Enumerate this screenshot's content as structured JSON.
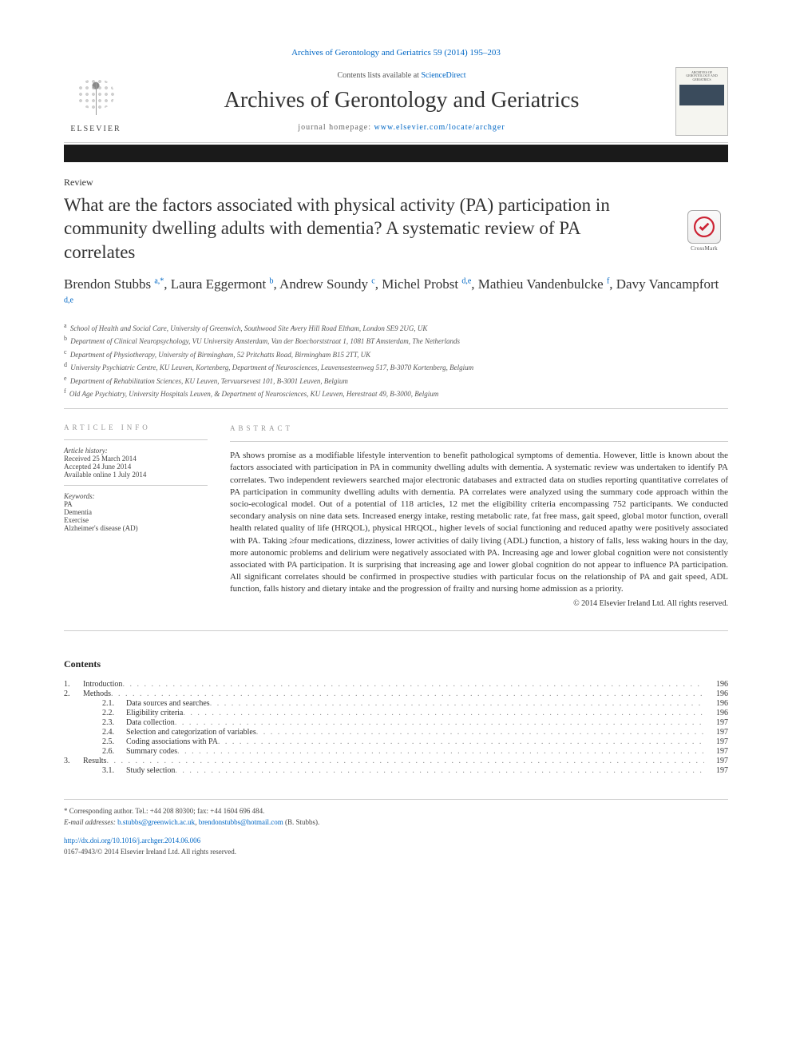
{
  "top_link": {
    "prefix": "Archives of Gerontology and Geriatrics 59 (2014) 195–203"
  },
  "header": {
    "contents_prefix": "Contents lists available at ",
    "contents_link": "ScienceDirect",
    "journal_name": "Archives of Gerontology and Geriatrics",
    "home_prefix": "journal homepage: ",
    "home_link": "www.elsevier.com/locate/archger",
    "elsevier_label": "ELSEVIER",
    "cover_text": "ARCHIVES OF GERONTOLOGY AND GERIATRICS",
    "crossmark_label": "CrossMark"
  },
  "article": {
    "review_label": "Review",
    "title": "What are the factors associated with physical activity (PA) participation in community dwelling adults with dementia? A systematic review of PA correlates",
    "authors_html": "Brendon Stubbs <sup>a,*</sup>, Laura Eggermont <sup>b</sup>, Andrew Soundy <sup>c</sup>, Michel Probst <sup>d,e</sup>, Mathieu Vandenbulcke <sup>f</sup>, Davy Vancampfort <sup>d,e</sup>",
    "affiliations": [
      {
        "sup": "a",
        "text": "School of Health and Social Care, University of Greenwich, Southwood Site Avery Hill Road Eltham, London SE9 2UG, UK"
      },
      {
        "sup": "b",
        "text": "Department of Clinical Neuropsychology, VU University Amsterdam, Van der Boechorststraat 1, 1081 BT Amsterdam, The Netherlands"
      },
      {
        "sup": "c",
        "text": "Department of Physiotherapy, University of Birmingham, 52 Pritchatts Road, Birmingham B15 2TT, UK"
      },
      {
        "sup": "d",
        "text": "University Psychiatric Centre, KU Leuven, Kortenberg, Department of Neurosciences, Leuvensesteenweg 517, B-3070 Kortenberg, Belgium"
      },
      {
        "sup": "e",
        "text": "Department of Rehabilitation Sciences, KU Leuven, Tervuursevest 101, B-3001 Leuven, Belgium"
      },
      {
        "sup": "f",
        "text": "Old Age Psychiatry, University Hospitals Leuven, & Department of Neurosciences, KU Leuven, Herestraat 49, B-3000, Belgium"
      }
    ]
  },
  "info": {
    "section_label": "ARTICLE INFO",
    "history_label": "Article history:",
    "received": "Received 25 March 2014",
    "accepted": "Accepted 24 June 2014",
    "online": "Available online 1 July 2014",
    "keywords_label": "Keywords:",
    "keywords": [
      "PA",
      "Dementia",
      "Exercise",
      "Alzheimer's disease (AD)"
    ]
  },
  "abstract": {
    "section_label": "ABSTRACT",
    "text": "PA shows promise as a modifiable lifestyle intervention to benefit pathological symptoms of dementia. However, little is known about the factors associated with participation in PA in community dwelling adults with dementia. A systematic review was undertaken to identify PA correlates. Two independent reviewers searched major electronic databases and extracted data on studies reporting quantitative correlates of PA participation in community dwelling adults with dementia. PA correlates were analyzed using the summary code approach within the socio-ecological model. Out of a potential of 118 articles, 12 met the eligibility criteria encompassing 752 participants. We conducted secondary analysis on nine data sets. Increased energy intake, resting metabolic rate, fat free mass, gait speed, global motor function, overall health related quality of life (HRQOL), physical HRQOL, higher levels of social functioning and reduced apathy were positively associated with PA. Taking ≥four medications, dizziness, lower activities of daily living (ADL) function, a history of falls, less waking hours in the day, more autonomic problems and delirium were negatively associated with PA. Increasing age and lower global cognition were not consistently associated with PA participation. It is surprising that increasing age and lower global cognition do not appear to influence PA participation. All significant correlates should be confirmed in prospective studies with particular focus on the relationship of PA and gait speed, ADL function, falls history and dietary intake and the progression of frailty and nursing home admission as a priority.",
    "copyright": "© 2014 Elsevier Ireland Ltd. All rights reserved."
  },
  "contents_heading": "Contents",
  "toc": [
    {
      "num": "1.",
      "sub": "",
      "title": "Introduction",
      "page": "196"
    },
    {
      "num": "2.",
      "sub": "",
      "title": "Methods",
      "page": "196"
    },
    {
      "num": "",
      "sub": "2.1.",
      "title": "Data sources and searches",
      "page": "196"
    },
    {
      "num": "",
      "sub": "2.2.",
      "title": "Eligibility criteria",
      "page": "196"
    },
    {
      "num": "",
      "sub": "2.3.",
      "title": "Data collection",
      "page": "197"
    },
    {
      "num": "",
      "sub": "2.4.",
      "title": "Selection and categorization of variables",
      "page": "197"
    },
    {
      "num": "",
      "sub": "2.5.",
      "title": "Coding associations with PA",
      "page": "197"
    },
    {
      "num": "",
      "sub": "2.6.",
      "title": "Summary codes",
      "page": "197"
    },
    {
      "num": "3.",
      "sub": "",
      "title": "Results",
      "page": "197"
    },
    {
      "num": "",
      "sub": "3.1.",
      "title": "Study selection",
      "page": "197"
    }
  ],
  "footer": {
    "corresponding": "* Corresponding author. Tel.: +44 208 80300; fax: +44 1604 696 484.",
    "email_label": "E-mail addresses: ",
    "email1": "b.stubbs@greenwich.ac.uk",
    "email_sep": ", ",
    "email2": "brendonstubbs@hotmail.com",
    "email_suffix": " (B. Stubbs).",
    "doi": "http://dx.doi.org/10.1016/j.archger.2014.06.006",
    "issn_line": "0167-4943/© 2014 Elsevier Ireland Ltd. All rights reserved."
  },
  "colors": {
    "link": "#0067c5",
    "text": "#222222",
    "rule": "#cccccc",
    "blackbar": "#1a1a1a"
  }
}
